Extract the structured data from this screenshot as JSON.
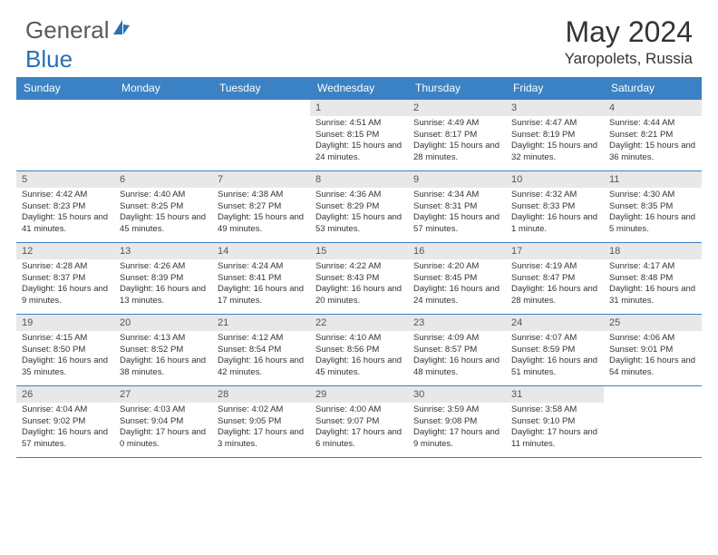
{
  "brand": {
    "part1": "General",
    "part2": "Blue",
    "text_color_gray": "#5a5a5a",
    "text_color_blue": "#2a6fb8",
    "icon_color": "#2a6fb8"
  },
  "title": "May 2024",
  "location": "Yaropolets, Russia",
  "header_bg": "#3b82c4",
  "header_text_color": "#ffffff",
  "daynum_bg": "#e8e8e8",
  "row_border_color": "#3b82c4",
  "day_headers": [
    "Sunday",
    "Monday",
    "Tuesday",
    "Wednesday",
    "Thursday",
    "Friday",
    "Saturday"
  ],
  "weeks": [
    [
      {
        "empty": true
      },
      {
        "empty": true
      },
      {
        "empty": true
      },
      {
        "num": "1",
        "sunrise": "Sunrise: 4:51 AM",
        "sunset": "Sunset: 8:15 PM",
        "daylight": "Daylight: 15 hours and 24 minutes."
      },
      {
        "num": "2",
        "sunrise": "Sunrise: 4:49 AM",
        "sunset": "Sunset: 8:17 PM",
        "daylight": "Daylight: 15 hours and 28 minutes."
      },
      {
        "num": "3",
        "sunrise": "Sunrise: 4:47 AM",
        "sunset": "Sunset: 8:19 PM",
        "daylight": "Daylight: 15 hours and 32 minutes."
      },
      {
        "num": "4",
        "sunrise": "Sunrise: 4:44 AM",
        "sunset": "Sunset: 8:21 PM",
        "daylight": "Daylight: 15 hours and 36 minutes."
      }
    ],
    [
      {
        "num": "5",
        "sunrise": "Sunrise: 4:42 AM",
        "sunset": "Sunset: 8:23 PM",
        "daylight": "Daylight: 15 hours and 41 minutes."
      },
      {
        "num": "6",
        "sunrise": "Sunrise: 4:40 AM",
        "sunset": "Sunset: 8:25 PM",
        "daylight": "Daylight: 15 hours and 45 minutes."
      },
      {
        "num": "7",
        "sunrise": "Sunrise: 4:38 AM",
        "sunset": "Sunset: 8:27 PM",
        "daylight": "Daylight: 15 hours and 49 minutes."
      },
      {
        "num": "8",
        "sunrise": "Sunrise: 4:36 AM",
        "sunset": "Sunset: 8:29 PM",
        "daylight": "Daylight: 15 hours and 53 minutes."
      },
      {
        "num": "9",
        "sunrise": "Sunrise: 4:34 AM",
        "sunset": "Sunset: 8:31 PM",
        "daylight": "Daylight: 15 hours and 57 minutes."
      },
      {
        "num": "10",
        "sunrise": "Sunrise: 4:32 AM",
        "sunset": "Sunset: 8:33 PM",
        "daylight": "Daylight: 16 hours and 1 minute."
      },
      {
        "num": "11",
        "sunrise": "Sunrise: 4:30 AM",
        "sunset": "Sunset: 8:35 PM",
        "daylight": "Daylight: 16 hours and 5 minutes."
      }
    ],
    [
      {
        "num": "12",
        "sunrise": "Sunrise: 4:28 AM",
        "sunset": "Sunset: 8:37 PM",
        "daylight": "Daylight: 16 hours and 9 minutes."
      },
      {
        "num": "13",
        "sunrise": "Sunrise: 4:26 AM",
        "sunset": "Sunset: 8:39 PM",
        "daylight": "Daylight: 16 hours and 13 minutes."
      },
      {
        "num": "14",
        "sunrise": "Sunrise: 4:24 AM",
        "sunset": "Sunset: 8:41 PM",
        "daylight": "Daylight: 16 hours and 17 minutes."
      },
      {
        "num": "15",
        "sunrise": "Sunrise: 4:22 AM",
        "sunset": "Sunset: 8:43 PM",
        "daylight": "Daylight: 16 hours and 20 minutes."
      },
      {
        "num": "16",
        "sunrise": "Sunrise: 4:20 AM",
        "sunset": "Sunset: 8:45 PM",
        "daylight": "Daylight: 16 hours and 24 minutes."
      },
      {
        "num": "17",
        "sunrise": "Sunrise: 4:19 AM",
        "sunset": "Sunset: 8:47 PM",
        "daylight": "Daylight: 16 hours and 28 minutes."
      },
      {
        "num": "18",
        "sunrise": "Sunrise: 4:17 AM",
        "sunset": "Sunset: 8:48 PM",
        "daylight": "Daylight: 16 hours and 31 minutes."
      }
    ],
    [
      {
        "num": "19",
        "sunrise": "Sunrise: 4:15 AM",
        "sunset": "Sunset: 8:50 PM",
        "daylight": "Daylight: 16 hours and 35 minutes."
      },
      {
        "num": "20",
        "sunrise": "Sunrise: 4:13 AM",
        "sunset": "Sunset: 8:52 PM",
        "daylight": "Daylight: 16 hours and 38 minutes."
      },
      {
        "num": "21",
        "sunrise": "Sunrise: 4:12 AM",
        "sunset": "Sunset: 8:54 PM",
        "daylight": "Daylight: 16 hours and 42 minutes."
      },
      {
        "num": "22",
        "sunrise": "Sunrise: 4:10 AM",
        "sunset": "Sunset: 8:56 PM",
        "daylight": "Daylight: 16 hours and 45 minutes."
      },
      {
        "num": "23",
        "sunrise": "Sunrise: 4:09 AM",
        "sunset": "Sunset: 8:57 PM",
        "daylight": "Daylight: 16 hours and 48 minutes."
      },
      {
        "num": "24",
        "sunrise": "Sunrise: 4:07 AM",
        "sunset": "Sunset: 8:59 PM",
        "daylight": "Daylight: 16 hours and 51 minutes."
      },
      {
        "num": "25",
        "sunrise": "Sunrise: 4:06 AM",
        "sunset": "Sunset: 9:01 PM",
        "daylight": "Daylight: 16 hours and 54 minutes."
      }
    ],
    [
      {
        "num": "26",
        "sunrise": "Sunrise: 4:04 AM",
        "sunset": "Sunset: 9:02 PM",
        "daylight": "Daylight: 16 hours and 57 minutes."
      },
      {
        "num": "27",
        "sunrise": "Sunrise: 4:03 AM",
        "sunset": "Sunset: 9:04 PM",
        "daylight": "Daylight: 17 hours and 0 minutes."
      },
      {
        "num": "28",
        "sunrise": "Sunrise: 4:02 AM",
        "sunset": "Sunset: 9:05 PM",
        "daylight": "Daylight: 17 hours and 3 minutes."
      },
      {
        "num": "29",
        "sunrise": "Sunrise: 4:00 AM",
        "sunset": "Sunset: 9:07 PM",
        "daylight": "Daylight: 17 hours and 6 minutes."
      },
      {
        "num": "30",
        "sunrise": "Sunrise: 3:59 AM",
        "sunset": "Sunset: 9:08 PM",
        "daylight": "Daylight: 17 hours and 9 minutes."
      },
      {
        "num": "31",
        "sunrise": "Sunrise: 3:58 AM",
        "sunset": "Sunset: 9:10 PM",
        "daylight": "Daylight: 17 hours and 11 minutes."
      },
      {
        "empty": true
      }
    ]
  ]
}
